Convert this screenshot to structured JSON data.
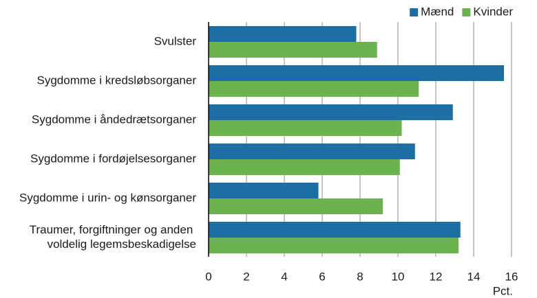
{
  "chart_data": {
    "type": "barh",
    "categories": [
      "Svulster",
      "Sygdomme i kredsløbsorganer",
      "Sygdomme i åndedrætsorganer",
      "Sygdomme i fordøjelsesorganer",
      "Sygdomme i urin- og kønsorganer",
      "Traumer, forgiftninger og anden voldelig legemsbeskadigelse"
    ],
    "series": [
      {
        "name": "Mænd",
        "color": "#1b6fa3",
        "values": [
          7.8,
          15.6,
          12.9,
          10.9,
          5.8,
          13.3
        ]
      },
      {
        "name": "Kvinder",
        "color": "#6cb24f",
        "values": [
          8.9,
          11.1,
          10.2,
          10.1,
          9.2,
          13.2
        ]
      }
    ],
    "xlabel": "Pct.",
    "xlim": [
      0,
      16
    ],
    "xticks": [
      0,
      2,
      4,
      6,
      8,
      10,
      12,
      14,
      16
    ],
    "grid": true,
    "legend": "top-right"
  }
}
